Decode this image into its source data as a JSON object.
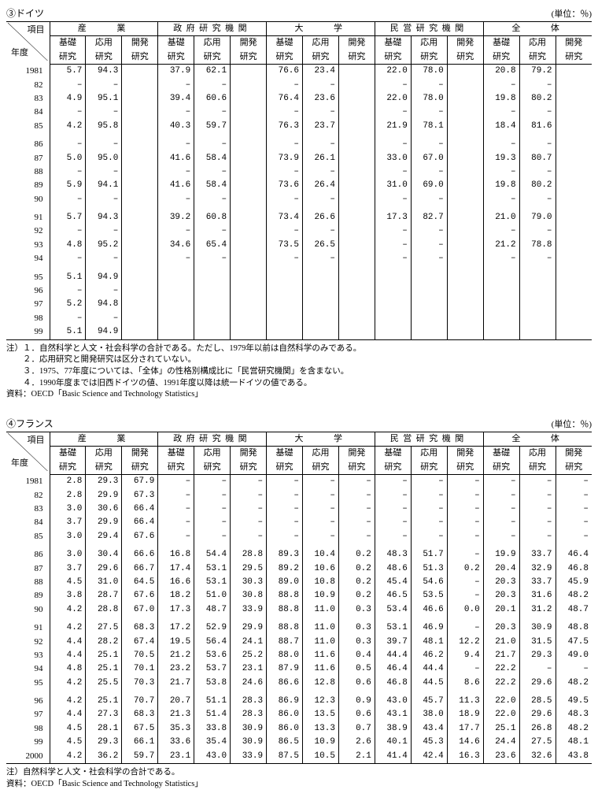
{
  "tables": [
    {
      "id": "germany",
      "title": "③ドイツ",
      "unit": "(単位：％)",
      "corner_top": "項目",
      "corner_bottom": "年度",
      "groups": [
        "産　　業",
        "政府研究機関",
        "大　　学",
        "民営研究機関",
        "全　　体"
      ],
      "sub_germany": [
        [
          "基礎",
          "研究"
        ],
        [
          "応用",
          "研究"
        ],
        [
          "開発",
          "研究"
        ]
      ],
      "years": [
        "1981",
        "82",
        "83",
        "84",
        "85",
        "86",
        "87",
        "88",
        "89",
        "90",
        "91",
        "92",
        "93",
        "94",
        "95",
        "96",
        "97",
        "98",
        "99"
      ],
      "gaps_after": [
        "85",
        "90",
        "94"
      ],
      "data": {
        "1981": [
          "5.7",
          "94.3",
          "",
          "37.9",
          "62.1",
          "",
          "76.6",
          "23.4",
          "",
          "22.0",
          "78.0",
          "",
          "20.8",
          "79.2",
          ""
        ],
        "82": [
          "–",
          "–",
          "",
          "–",
          "–",
          "",
          "–",
          "–",
          "",
          "–",
          "–",
          "",
          "–",
          "–",
          ""
        ],
        "83": [
          "4.9",
          "95.1",
          "",
          "39.4",
          "60.6",
          "",
          "76.4",
          "23.6",
          "",
          "22.0",
          "78.0",
          "",
          "19.8",
          "80.2",
          ""
        ],
        "84": [
          "–",
          "–",
          "",
          "–",
          "–",
          "",
          "–",
          "–",
          "",
          "–",
          "–",
          "",
          "–",
          "–",
          ""
        ],
        "85": [
          "4.2",
          "95.8",
          "",
          "40.3",
          "59.7",
          "",
          "76.3",
          "23.7",
          "",
          "21.9",
          "78.1",
          "",
          "18.4",
          "81.6",
          ""
        ],
        "86": [
          "–",
          "–",
          "",
          "–",
          "–",
          "",
          "–",
          "–",
          "",
          "–",
          "–",
          "",
          "–",
          "–",
          ""
        ],
        "87": [
          "5.0",
          "95.0",
          "",
          "41.6",
          "58.4",
          "",
          "73.9",
          "26.1",
          "",
          "33.0",
          "67.0",
          "",
          "19.3",
          "80.7",
          ""
        ],
        "88": [
          "–",
          "–",
          "",
          "–",
          "–",
          "",
          "–",
          "–",
          "",
          "–",
          "–",
          "",
          "–",
          "–",
          ""
        ],
        "89": [
          "5.9",
          "94.1",
          "",
          "41.6",
          "58.4",
          "",
          "73.6",
          "26.4",
          "",
          "31.0",
          "69.0",
          "",
          "19.8",
          "80.2",
          ""
        ],
        "90": [
          "–",
          "–",
          "",
          "–",
          "–",
          "",
          "–",
          "–",
          "",
          "–",
          "–",
          "",
          "–",
          "–",
          ""
        ],
        "91": [
          "5.7",
          "94.3",
          "",
          "39.2",
          "60.8",
          "",
          "73.4",
          "26.6",
          "",
          "17.3",
          "82.7",
          "",
          "21.0",
          "79.0",
          ""
        ],
        "92": [
          "–",
          "–",
          "",
          "–",
          "–",
          "",
          "–",
          "–",
          "",
          "–",
          "–",
          "",
          "–",
          "–",
          ""
        ],
        "93": [
          "4.8",
          "95.2",
          "",
          "34.6",
          "65.4",
          "",
          "73.5",
          "26.5",
          "",
          "–",
          "–",
          "",
          "21.2",
          "78.8",
          ""
        ],
        "94": [
          "–",
          "–",
          "",
          "–",
          "–",
          "",
          "–",
          "–",
          "",
          "–",
          "–",
          "",
          "–",
          "–",
          ""
        ],
        "95": [
          "5.1",
          "94.9",
          "",
          "",
          "",
          "",
          "",
          "",
          "",
          "",
          "",
          "",
          "",
          "",
          ""
        ],
        "96": [
          "–",
          "–",
          "",
          "",
          "",
          "",
          "",
          "",
          "",
          "",
          "",
          "",
          "",
          "",
          ""
        ],
        "97": [
          "5.2",
          "94.8",
          "",
          "",
          "",
          "",
          "",
          "",
          "",
          "",
          "",
          "",
          "",
          "",
          ""
        ],
        "98": [
          "–",
          "–",
          "",
          "",
          "",
          "",
          "",
          "",
          "",
          "",
          "",
          "",
          "",
          "",
          ""
        ],
        "99": [
          "5.1",
          "94.9",
          "",
          "",
          "",
          "",
          "",
          "",
          "",
          "",
          "",
          "",
          "",
          "",
          ""
        ]
      },
      "notes": [
        "注）１．自然科学と人文・社会科学の合計である。ただし、1979年以前は自然科学のみである。",
        "　　２．応用研究と開発研究は区分されていない。",
        "　　３．1975、77年度については、「全体」の性格別構成比に「民営研究機関」を含まない。",
        "　　４．1990年度までは旧西ドイツの値、1991年度以降は統一ドイツの値である。",
        "資料：OECD「Basic Science and Technology Statistics」"
      ]
    },
    {
      "id": "france",
      "title": "④フランス",
      "unit": "(単位：％)",
      "corner_top": "項目",
      "corner_bottom": "年度",
      "groups": [
        "産　　業",
        "政府研究機関",
        "大　　学",
        "民営研究機関",
        "全　　体"
      ],
      "sub_france": [
        [
          "基礎",
          "研究"
        ],
        [
          "応用",
          "研究"
        ],
        [
          "開発",
          "研究"
        ]
      ],
      "years": [
        "1981",
        "82",
        "83",
        "84",
        "85",
        "86",
        "87",
        "88",
        "89",
        "90",
        "91",
        "92",
        "93",
        "94",
        "95",
        "96",
        "97",
        "98",
        "99",
        "2000"
      ],
      "gaps_after": [
        "85",
        "90",
        "95"
      ],
      "data": {
        "1981": [
          "2.8",
          "29.3",
          "67.9",
          "–",
          "–",
          "–",
          "–",
          "–",
          "–",
          "–",
          "–",
          "–",
          "–",
          "–",
          "–"
        ],
        "82": [
          "2.8",
          "29.9",
          "67.3",
          "–",
          "–",
          "–",
          "–",
          "–",
          "–",
          "–",
          "–",
          "–",
          "–",
          "–",
          "–"
        ],
        "83": [
          "3.0",
          "30.6",
          "66.4",
          "–",
          "–",
          "–",
          "–",
          "–",
          "–",
          "–",
          "–",
          "–",
          "–",
          "–",
          "–"
        ],
        "84": [
          "3.7",
          "29.9",
          "66.4",
          "–",
          "–",
          "–",
          "–",
          "–",
          "–",
          "–",
          "–",
          "–",
          "–",
          "–",
          "–"
        ],
        "85": [
          "3.0",
          "29.4",
          "67.6",
          "–",
          "–",
          "–",
          "–",
          "–",
          "–",
          "–",
          "–",
          "–",
          "–",
          "–",
          "–"
        ],
        "86": [
          "3.0",
          "30.4",
          "66.6",
          "16.8",
          "54.4",
          "28.8",
          "89.3",
          "10.4",
          "0.2",
          "48.3",
          "51.7",
          "–",
          "19.9",
          "33.7",
          "46.4"
        ],
        "87": [
          "3.7",
          "29.6",
          "66.7",
          "17.4",
          "53.1",
          "29.5",
          "89.2",
          "10.6",
          "0.2",
          "48.6",
          "51.3",
          "0.2",
          "20.4",
          "32.9",
          "46.8"
        ],
        "88": [
          "4.5",
          "31.0",
          "64.5",
          "16.6",
          "53.1",
          "30.3",
          "89.0",
          "10.8",
          "0.2",
          "45.4",
          "54.6",
          "–",
          "20.3",
          "33.7",
          "45.9"
        ],
        "89": [
          "3.8",
          "28.7",
          "67.6",
          "18.2",
          "51.0",
          "30.8",
          "88.8",
          "10.9",
          "0.2",
          "46.5",
          "53.5",
          "–",
          "20.3",
          "31.6",
          "48.2"
        ],
        "90": [
          "4.2",
          "28.8",
          "67.0",
          "17.3",
          "48.7",
          "33.9",
          "88.8",
          "11.0",
          "0.3",
          "53.4",
          "46.6",
          "0.0",
          "20.1",
          "31.2",
          "48.7"
        ],
        "91": [
          "4.2",
          "27.5",
          "68.3",
          "17.2",
          "52.9",
          "29.9",
          "88.8",
          "11.0",
          "0.3",
          "53.1",
          "46.9",
          "–",
          "20.3",
          "30.9",
          "48.8"
        ],
        "92": [
          "4.4",
          "28.2",
          "67.4",
          "19.5",
          "56.4",
          "24.1",
          "88.7",
          "11.0",
          "0.3",
          "39.7",
          "48.1",
          "12.2",
          "21.0",
          "31.5",
          "47.5"
        ],
        "93": [
          "4.4",
          "25.1",
          "70.5",
          "21.2",
          "53.6",
          "25.2",
          "88.0",
          "11.6",
          "0.4",
          "44.4",
          "46.2",
          "9.4",
          "21.7",
          "29.3",
          "49.0"
        ],
        "94": [
          "4.8",
          "25.1",
          "70.1",
          "23.2",
          "53.7",
          "23.1",
          "87.9",
          "11.6",
          "0.5",
          "46.4",
          "44.4",
          "–",
          "22.2",
          "–",
          "–"
        ],
        "95": [
          "4.2",
          "25.5",
          "70.3",
          "21.7",
          "53.8",
          "24.6",
          "86.6",
          "12.8",
          "0.6",
          "46.8",
          "44.5",
          "8.6",
          "22.2",
          "29.6",
          "48.2"
        ],
        "96": [
          "4.2",
          "25.1",
          "70.7",
          "20.7",
          "51.1",
          "28.3",
          "86.9",
          "12.3",
          "0.9",
          "43.0",
          "45.7",
          "11.3",
          "22.0",
          "28.5",
          "49.5"
        ],
        "97": [
          "4.4",
          "27.3",
          "68.3",
          "21.3",
          "51.4",
          "28.3",
          "86.0",
          "13.5",
          "0.6",
          "43.1",
          "38.0",
          "18.9",
          "22.0",
          "29.6",
          "48.3"
        ],
        "98": [
          "4.5",
          "28.1",
          "67.5",
          "35.3",
          "33.8",
          "30.9",
          "86.0",
          "13.3",
          "0.7",
          "38.9",
          "43.4",
          "17.7",
          "25.1",
          "26.8",
          "48.2"
        ],
        "99": [
          "4.5",
          "29.3",
          "66.1",
          "33.6",
          "35.4",
          "30.9",
          "86.5",
          "10.9",
          "2.6",
          "40.1",
          "45.3",
          "14.6",
          "24.4",
          "27.5",
          "48.1"
        ],
        "2000": [
          "4.2",
          "36.2",
          "59.7",
          "23.1",
          "43.0",
          "33.9",
          "87.5",
          "10.5",
          "2.1",
          "41.4",
          "42.4",
          "16.3",
          "23.6",
          "32.6",
          "43.8"
        ]
      },
      "notes": [
        "注）自然科学と人文・社会科学の合計である。",
        "資料：OECD「Basic Science and Technology Statistics」"
      ]
    }
  ]
}
